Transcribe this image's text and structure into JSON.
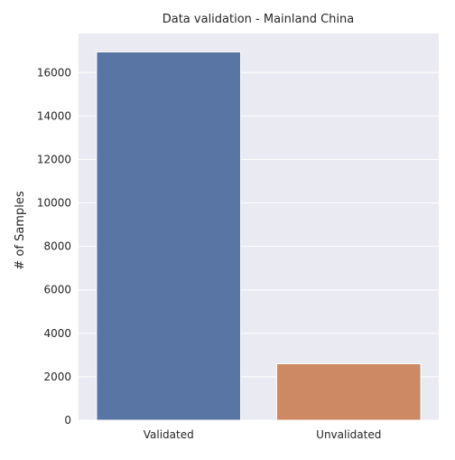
{
  "chart_data": {
    "type": "bar",
    "title": "Data validation - Mainland China",
    "xlabel": "",
    "ylabel": "# of Samples",
    "categories": [
      "Validated",
      "Unvalidated"
    ],
    "values": [
      16950,
      2600
    ],
    "ylim": [
      0,
      17800
    ],
    "yticks": [
      0,
      2000,
      4000,
      6000,
      8000,
      10000,
      12000,
      14000,
      16000
    ],
    "ytick_labels": [
      "0",
      "2000",
      "4000",
      "6000",
      "8000",
      "10000",
      "12000",
      "14000",
      "16000"
    ],
    "grid": true,
    "colors": {
      "background": "#eaeaf2",
      "grid": "#ffffff",
      "bars": [
        "#5875a4",
        "#cc8963"
      ]
    }
  }
}
